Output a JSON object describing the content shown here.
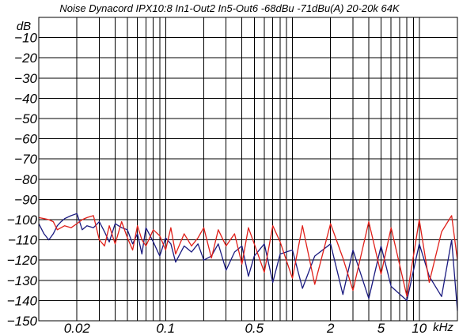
{
  "chart_data": {
    "type": "line",
    "title": "Noise Dynacord  IPX10:8  In1-Out2  In5-Out6  -68dBu  -71dBu(A)  20-20k  64K",
    "ylabel": "dB",
    "xlabel": "kHz",
    "x_scale": "log",
    "xlim": [
      0.01,
      20
    ],
    "ylim": [
      -150,
      0
    ],
    "grid": true,
    "legend": "none",
    "y_ticks": [
      {
        "value": -10,
        "label": "−10"
      },
      {
        "value": -20,
        "label": "−20"
      },
      {
        "value": -30,
        "label": "−30"
      },
      {
        "value": -40,
        "label": "−40"
      },
      {
        "value": -50,
        "label": "−50"
      },
      {
        "value": -60,
        "label": "−60"
      },
      {
        "value": -70,
        "label": "−70"
      },
      {
        "value": -80,
        "label": "−80"
      },
      {
        "value": -90,
        "label": "−90"
      },
      {
        "value": -100,
        "label": "−100"
      },
      {
        "value": -110,
        "label": "−110"
      },
      {
        "value": -120,
        "label": "−120"
      },
      {
        "value": -130,
        "label": "−130"
      },
      {
        "value": -140,
        "label": "−140"
      },
      {
        "value": -150,
        "label": "−150"
      }
    ],
    "x_ticks": [
      {
        "value": 0.02,
        "label": "0.02"
      },
      {
        "value": 0.1,
        "label": "0.1"
      },
      {
        "value": 0.5,
        "label": "0.5"
      },
      {
        "value": 2,
        "label": "2"
      },
      {
        "value": 5,
        "label": "5"
      },
      {
        "value": 10,
        "label": "10"
      }
    ],
    "x_grid": [
      0.01,
      0.02,
      0.03,
      0.04,
      0.05,
      0.06,
      0.07,
      0.08,
      0.09,
      0.1,
      0.2,
      0.3,
      0.4,
      0.5,
      0.6,
      0.7,
      0.8,
      0.9,
      1,
      2,
      3,
      4,
      5,
      6,
      7,
      8,
      9,
      10,
      20
    ],
    "series": [
      {
        "color": "#1a1a80",
        "x": [
          0.01,
          0.011,
          0.012,
          0.013,
          0.014,
          0.015,
          0.016,
          0.018,
          0.02,
          0.022,
          0.024,
          0.027,
          0.03,
          0.033,
          0.036,
          0.04,
          0.045,
          0.05,
          0.055,
          0.06,
          0.065,
          0.07,
          0.08,
          0.09,
          0.1,
          0.11,
          0.12,
          0.14,
          0.16,
          0.18,
          0.2,
          0.23,
          0.26,
          0.3,
          0.35,
          0.4,
          0.45,
          0.5,
          0.6,
          0.7,
          0.8,
          1,
          1.2,
          1.5,
          2,
          2.5,
          3,
          4,
          5,
          6,
          8,
          10,
          12,
          15,
          18,
          20
        ],
        "y": [
          -102,
          -107,
          -110,
          -107,
          -103,
          -101,
          -99.5,
          -98,
          -97,
          -105,
          -103,
          -104,
          -101,
          -106,
          -111,
          -102,
          -104,
          -105,
          -112,
          -107,
          -117,
          -104,
          -111,
          -118,
          -109,
          -112,
          -121,
          -113,
          -116,
          -112,
          -120,
          -118,
          -112,
          -125,
          -116,
          -113,
          -128,
          -118,
          -112,
          -131,
          -117,
          -115,
          -134,
          -118,
          -112,
          -137,
          -115,
          -139,
          -113,
          -133,
          -140,
          -112,
          -128,
          -138,
          -110,
          -145
        ]
      },
      {
        "color": "#e0201a",
        "x": [
          0.01,
          0.011,
          0.012,
          0.013,
          0.014,
          0.015,
          0.016,
          0.018,
          0.02,
          0.022,
          0.024,
          0.027,
          0.03,
          0.033,
          0.036,
          0.04,
          0.045,
          0.05,
          0.055,
          0.06,
          0.065,
          0.07,
          0.08,
          0.09,
          0.1,
          0.11,
          0.12,
          0.14,
          0.16,
          0.18,
          0.2,
          0.23,
          0.26,
          0.3,
          0.35,
          0.4,
          0.45,
          0.5,
          0.6,
          0.7,
          0.8,
          1,
          1.2,
          1.5,
          2,
          2.5,
          3,
          4,
          5,
          6,
          8,
          10,
          12,
          15,
          18,
          20
        ],
        "y": [
          -99,
          -99.5,
          -100,
          -101,
          -105,
          -104,
          -103,
          -104,
          -102,
          -100,
          -99,
          -98,
          -110,
          -113,
          -103,
          -112,
          -101,
          -109,
          -115,
          -103,
          -110,
          -113,
          -105,
          -108,
          -115,
          -104,
          -117,
          -107,
          -113,
          -109,
          -104,
          -119,
          -105,
          -113,
          -107,
          -122,
          -104,
          -112,
          -126,
          -103,
          -111,
          -129,
          -103,
          -132,
          -102,
          -119,
          -135,
          -101,
          -127,
          -104,
          -138,
          -100,
          -131,
          -106,
          -98,
          -120
        ]
      }
    ]
  }
}
